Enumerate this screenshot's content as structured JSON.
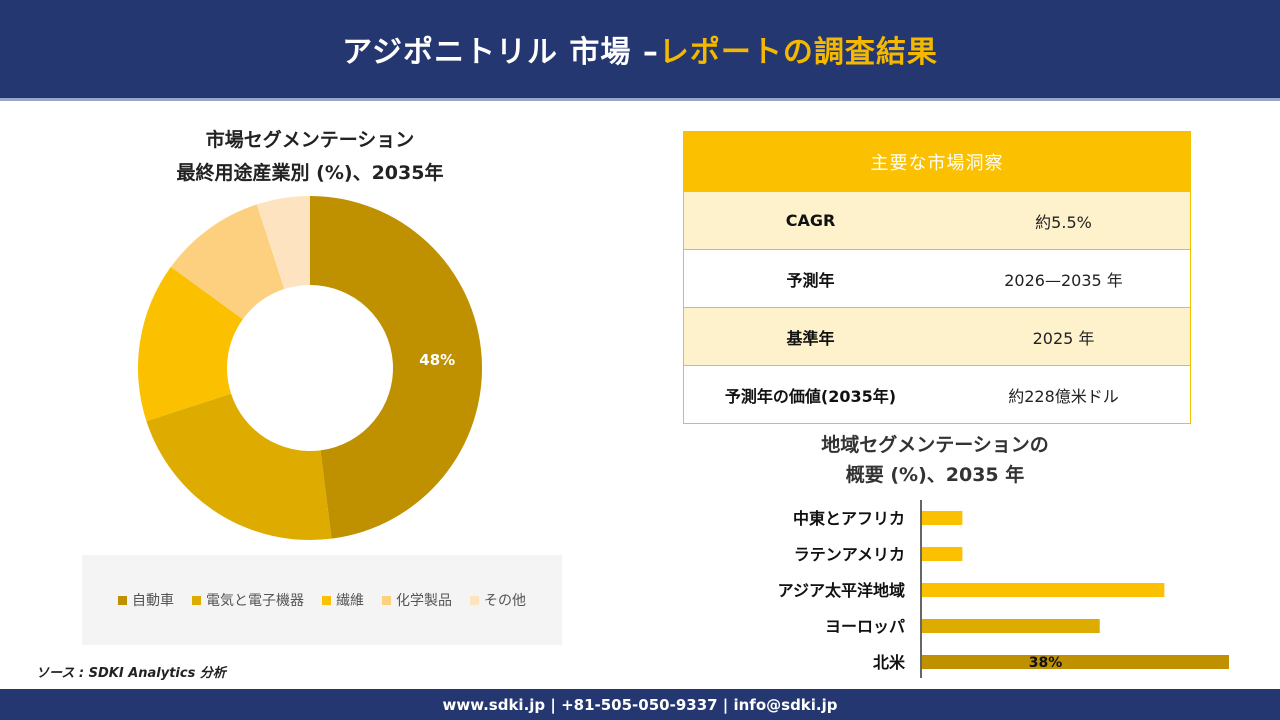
{
  "header": {
    "title_main": "アジポニトリル 市場 –",
    "title_highlight": "レポートの調査結果"
  },
  "segment": {
    "title_line1": "市場セグメンテーション",
    "title_line2": "最終用途産業別 (%)、2035年"
  },
  "insights": {
    "title": "主要な市場洞察",
    "rows": [
      {
        "key": "CAGR",
        "value": "約5.5%"
      },
      {
        "key": "予測年",
        "value": "2026—2035 年"
      },
      {
        "key": "基準年",
        "value": "2025 年"
      },
      {
        "key": "予測年の価値(2035年)",
        "value": "約228億米ドル"
      }
    ]
  },
  "region": {
    "title_line1": "地域セグメンテーションの",
    "title_line2": "概要 (%)、2035 年"
  },
  "source": "ソース : SDKI Analytics 分析",
  "footer": "www.sdki.jp | +81-505-050-9337 | info@sdki.jp",
  "chart_data": [
    {
      "type": "pie",
      "categories": [
        "自動車",
        "電気と電子機器",
        "繊維",
        "化学製品",
        "その他"
      ],
      "values": [
        48,
        22,
        15,
        10,
        5
      ],
      "data_labels": [
        "48%",
        "",
        "",
        "",
        ""
      ],
      "colors": [
        "#bf9000",
        "#deab00",
        "#fbc000",
        "#fdd080",
        "#fde3c0"
      ],
      "legend_position": "bottom"
    },
    {
      "type": "bar",
      "orientation": "horizontal",
      "categories": [
        "中東とアフリカ",
        "ラテンアメリカ",
        "アジア太平洋地域",
        "ヨーロッパ",
        "北米"
      ],
      "values": [
        5,
        5,
        30,
        22,
        38
      ],
      "data_labels": [
        "",
        "",
        "",
        "",
        "38%"
      ],
      "colors": [
        "#fbc000",
        "#fbc000",
        "#fbc000",
        "#deab00",
        "#bf9000"
      ]
    }
  ]
}
